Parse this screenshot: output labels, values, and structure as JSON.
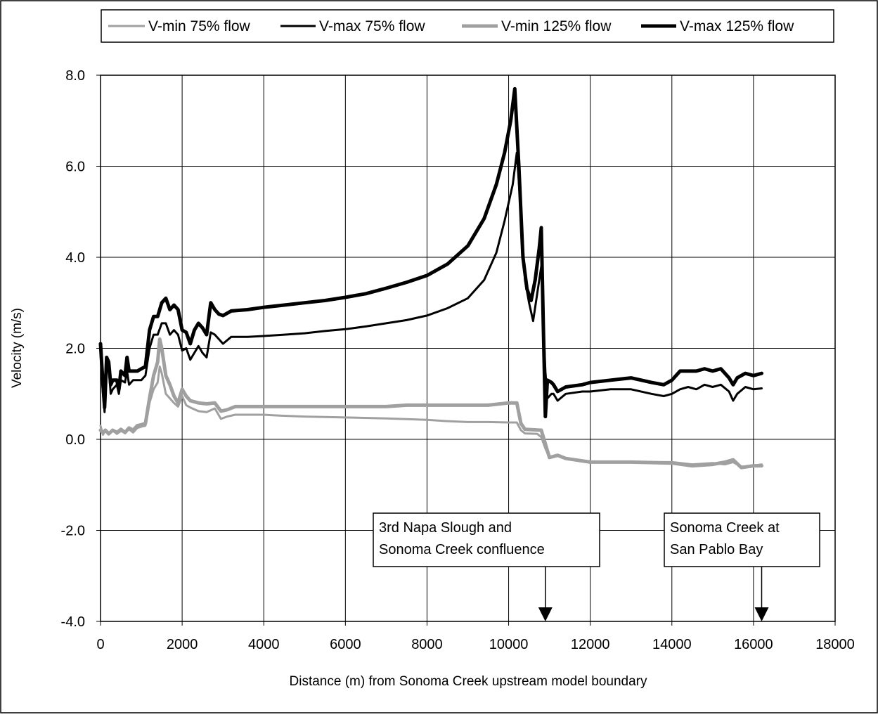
{
  "chart_data": {
    "type": "line",
    "title": "",
    "xlabel": "Distance (m) from Sonoma Creek upstream model boundary",
    "ylabel": "Velocity (m/s)",
    "xlim": [
      0,
      18000
    ],
    "ylim": [
      -4.0,
      8.0
    ],
    "x_ticks": [
      "0",
      "2000",
      "4000",
      "6000",
      "8000",
      "10000",
      "12000",
      "14000",
      "16000",
      "18000"
    ],
    "y_ticks": [
      "-4.0",
      "-2.0",
      "0.0",
      "2.0",
      "4.0",
      "6.0",
      "8.0"
    ],
    "grid": true,
    "legend_position": "top",
    "series": [
      {
        "name": "V-min 75% flow",
        "color": "#a0a0a0",
        "width": "thin",
        "points": [
          [
            0,
            0.3
          ],
          [
            60,
            0.1
          ],
          [
            120,
            0.2
          ],
          [
            200,
            0.15
          ],
          [
            300,
            0.2
          ],
          [
            400,
            0.12
          ],
          [
            500,
            0.18
          ],
          [
            600,
            0.15
          ],
          [
            700,
            0.22
          ],
          [
            800,
            0.15
          ],
          [
            900,
            0.25
          ],
          [
            1000,
            0.28
          ],
          [
            1100,
            0.3
          ],
          [
            1200,
            0.8
          ],
          [
            1300,
            1.1
          ],
          [
            1400,
            1.25
          ],
          [
            1450,
            1.6
          ],
          [
            1500,
            1.45
          ],
          [
            1600,
            1.0
          ],
          [
            1700,
            0.9
          ],
          [
            1800,
            0.8
          ],
          [
            1900,
            0.72
          ],
          [
            2000,
            0.95
          ],
          [
            2100,
            0.75
          ],
          [
            2200,
            0.7
          ],
          [
            2400,
            0.62
          ],
          [
            2600,
            0.6
          ],
          [
            2800,
            0.68
          ],
          [
            2950,
            0.45
          ],
          [
            3100,
            0.5
          ],
          [
            3300,
            0.54
          ],
          [
            3600,
            0.54
          ],
          [
            4000,
            0.54
          ],
          [
            4400,
            0.52
          ],
          [
            5000,
            0.5
          ],
          [
            6000,
            0.48
          ],
          [
            7000,
            0.46
          ],
          [
            8000,
            0.43
          ],
          [
            8500,
            0.4
          ],
          [
            9000,
            0.38
          ],
          [
            9500,
            0.38
          ],
          [
            10000,
            0.37
          ],
          [
            10200,
            0.37
          ],
          [
            10300,
            0.2
          ],
          [
            10400,
            0.13
          ],
          [
            10700,
            0.12
          ],
          [
            10800,
            0.05
          ],
          [
            10900,
            -0.2
          ],
          [
            11000,
            -0.4
          ],
          [
            11200,
            -0.35
          ],
          [
            11400,
            -0.42
          ],
          [
            12000,
            -0.5
          ],
          [
            13000,
            -0.5
          ],
          [
            14000,
            -0.5
          ],
          [
            14500,
            -0.55
          ],
          [
            15000,
            -0.52
          ],
          [
            15300,
            -0.55
          ],
          [
            15500,
            -0.5
          ],
          [
            15700,
            -0.6
          ],
          [
            16000,
            -0.58
          ],
          [
            16200,
            -0.55
          ]
        ]
      },
      {
        "name": "V-max 75% flow",
        "color": "#000000",
        "width": "thin",
        "points": [
          [
            0,
            1.9
          ],
          [
            60,
            1.0
          ],
          [
            100,
            0.6
          ],
          [
            150,
            1.7
          ],
          [
            200,
            1.6
          ],
          [
            250,
            1.0
          ],
          [
            300,
            1.1
          ],
          [
            400,
            1.2
          ],
          [
            450,
            1.0
          ],
          [
            500,
            1.3
          ],
          [
            600,
            1.25
          ],
          [
            650,
            1.5
          ],
          [
            700,
            1.2
          ],
          [
            800,
            1.3
          ],
          [
            900,
            1.3
          ],
          [
            1000,
            1.3
          ],
          [
            1100,
            1.4
          ],
          [
            1200,
            2.0
          ],
          [
            1300,
            2.3
          ],
          [
            1400,
            2.3
          ],
          [
            1500,
            2.55
          ],
          [
            1600,
            2.55
          ],
          [
            1700,
            2.3
          ],
          [
            1800,
            2.4
          ],
          [
            1900,
            2.3
          ],
          [
            2000,
            1.95
          ],
          [
            2100,
            2.0
          ],
          [
            2200,
            1.75
          ],
          [
            2300,
            1.9
          ],
          [
            2400,
            2.05
          ],
          [
            2500,
            1.9
          ],
          [
            2600,
            1.8
          ],
          [
            2700,
            2.35
          ],
          [
            2800,
            2.3
          ],
          [
            2900,
            2.2
          ],
          [
            3000,
            2.1
          ],
          [
            3200,
            2.25
          ],
          [
            3600,
            2.25
          ],
          [
            4000,
            2.27
          ],
          [
            4500,
            2.3
          ],
          [
            5000,
            2.33
          ],
          [
            5500,
            2.38
          ],
          [
            6000,
            2.42
          ],
          [
            6500,
            2.48
          ],
          [
            7000,
            2.55
          ],
          [
            7500,
            2.62
          ],
          [
            8000,
            2.72
          ],
          [
            8500,
            2.88
          ],
          [
            9000,
            3.1
          ],
          [
            9400,
            3.5
          ],
          [
            9700,
            4.1
          ],
          [
            9900,
            4.8
          ],
          [
            10100,
            5.6
          ],
          [
            10200,
            6.3
          ],
          [
            10300,
            5.0
          ],
          [
            10400,
            3.5
          ],
          [
            10500,
            3.0
          ],
          [
            10600,
            2.6
          ],
          [
            10700,
            3.2
          ],
          [
            10800,
            3.8
          ],
          [
            10900,
            1.5
          ],
          [
            10950,
            0.9
          ],
          [
            11050,
            1.0
          ],
          [
            11100,
            1.0
          ],
          [
            11200,
            0.85
          ],
          [
            11400,
            1.0
          ],
          [
            11800,
            1.05
          ],
          [
            12000,
            1.05
          ],
          [
            12500,
            1.1
          ],
          [
            13000,
            1.1
          ],
          [
            13500,
            1.0
          ],
          [
            13800,
            0.95
          ],
          [
            14000,
            1.0
          ],
          [
            14200,
            1.1
          ],
          [
            14400,
            1.15
          ],
          [
            14600,
            1.1
          ],
          [
            14800,
            1.2
          ],
          [
            15000,
            1.15
          ],
          [
            15200,
            1.2
          ],
          [
            15400,
            1.05
          ],
          [
            15500,
            0.85
          ],
          [
            15600,
            1.0
          ],
          [
            15800,
            1.15
          ],
          [
            16000,
            1.1
          ],
          [
            16200,
            1.12
          ]
        ]
      },
      {
        "name": "V-min 125% flow",
        "color": "#a0a0a0",
        "width": "thick",
        "points": [
          [
            0,
            0.2
          ],
          [
            60,
            0.15
          ],
          [
            120,
            0.2
          ],
          [
            200,
            0.12
          ],
          [
            300,
            0.2
          ],
          [
            400,
            0.15
          ],
          [
            500,
            0.22
          ],
          [
            600,
            0.15
          ],
          [
            700,
            0.25
          ],
          [
            800,
            0.2
          ],
          [
            900,
            0.3
          ],
          [
            1000,
            0.32
          ],
          [
            1100,
            0.35
          ],
          [
            1200,
            0.9
          ],
          [
            1300,
            1.4
          ],
          [
            1400,
            1.7
          ],
          [
            1450,
            2.2
          ],
          [
            1500,
            2.0
          ],
          [
            1600,
            1.4
          ],
          [
            1700,
            1.2
          ],
          [
            1800,
            0.95
          ],
          [
            1900,
            0.8
          ],
          [
            2000,
            1.1
          ],
          [
            2100,
            0.95
          ],
          [
            2200,
            0.85
          ],
          [
            2400,
            0.8
          ],
          [
            2600,
            0.78
          ],
          [
            2800,
            0.8
          ],
          [
            2950,
            0.62
          ],
          [
            3100,
            0.65
          ],
          [
            3300,
            0.72
          ],
          [
            5000,
            0.72
          ],
          [
            7000,
            0.72
          ],
          [
            7500,
            0.75
          ],
          [
            9500,
            0.75
          ],
          [
            10000,
            0.8
          ],
          [
            10200,
            0.8
          ],
          [
            10300,
            0.35
          ],
          [
            10400,
            0.22
          ],
          [
            10800,
            0.2
          ],
          [
            10900,
            -0.1
          ],
          [
            11000,
            -0.4
          ],
          [
            11200,
            -0.35
          ],
          [
            11400,
            -0.42
          ],
          [
            12000,
            -0.5
          ],
          [
            13000,
            -0.5
          ],
          [
            14000,
            -0.52
          ],
          [
            14500,
            -0.58
          ],
          [
            15000,
            -0.55
          ],
          [
            15300,
            -0.5
          ],
          [
            15500,
            -0.45
          ],
          [
            15700,
            -0.62
          ],
          [
            16000,
            -0.58
          ],
          [
            16200,
            -0.58
          ]
        ]
      },
      {
        "name": "V-max 125% flow",
        "color": "#000000",
        "width": "thick",
        "points": [
          [
            0,
            2.1
          ],
          [
            60,
            1.2
          ],
          [
            100,
            0.7
          ],
          [
            150,
            1.8
          ],
          [
            200,
            1.7
          ],
          [
            250,
            1.2
          ],
          [
            300,
            1.3
          ],
          [
            400,
            1.3
          ],
          [
            450,
            1.1
          ],
          [
            500,
            1.5
          ],
          [
            600,
            1.4
          ],
          [
            650,
            1.8
          ],
          [
            700,
            1.5
          ],
          [
            800,
            1.5
          ],
          [
            900,
            1.5
          ],
          [
            1000,
            1.55
          ],
          [
            1100,
            1.6
          ],
          [
            1200,
            2.4
          ],
          [
            1300,
            2.7
          ],
          [
            1400,
            2.7
          ],
          [
            1500,
            3.0
          ],
          [
            1600,
            3.1
          ],
          [
            1700,
            2.85
          ],
          [
            1800,
            2.95
          ],
          [
            1900,
            2.85
          ],
          [
            2000,
            2.4
          ],
          [
            2100,
            2.35
          ],
          [
            2200,
            2.1
          ],
          [
            2300,
            2.4
          ],
          [
            2400,
            2.55
          ],
          [
            2500,
            2.45
          ],
          [
            2600,
            2.3
          ],
          [
            2700,
            3.0
          ],
          [
            2800,
            2.85
          ],
          [
            2900,
            2.75
          ],
          [
            3000,
            2.72
          ],
          [
            3200,
            2.82
          ],
          [
            3600,
            2.85
          ],
          [
            4000,
            2.9
          ],
          [
            4500,
            2.95
          ],
          [
            5000,
            3.0
          ],
          [
            5500,
            3.05
          ],
          [
            6000,
            3.12
          ],
          [
            6500,
            3.2
          ],
          [
            7000,
            3.32
          ],
          [
            7500,
            3.45
          ],
          [
            8000,
            3.6
          ],
          [
            8500,
            3.85
          ],
          [
            9000,
            4.25
          ],
          [
            9400,
            4.85
          ],
          [
            9700,
            5.6
          ],
          [
            9900,
            6.3
          ],
          [
            10050,
            7.0
          ],
          [
            10150,
            7.7
          ],
          [
            10250,
            6.0
          ],
          [
            10350,
            4.0
          ],
          [
            10450,
            3.3
          ],
          [
            10550,
            3.05
          ],
          [
            10650,
            3.5
          ],
          [
            10750,
            4.2
          ],
          [
            10800,
            4.65
          ],
          [
            10850,
            2.5
          ],
          [
            10900,
            0.5
          ],
          [
            10950,
            1.3
          ],
          [
            11050,
            1.25
          ],
          [
            11100,
            1.2
          ],
          [
            11200,
            1.05
          ],
          [
            11400,
            1.15
          ],
          [
            11800,
            1.2
          ],
          [
            12000,
            1.25
          ],
          [
            12500,
            1.3
          ],
          [
            13000,
            1.35
          ],
          [
            13500,
            1.25
          ],
          [
            13800,
            1.2
          ],
          [
            14000,
            1.3
          ],
          [
            14200,
            1.5
          ],
          [
            14400,
            1.5
          ],
          [
            14600,
            1.5
          ],
          [
            14800,
            1.55
          ],
          [
            15000,
            1.5
          ],
          [
            15200,
            1.55
          ],
          [
            15400,
            1.35
          ],
          [
            15500,
            1.2
          ],
          [
            15600,
            1.35
          ],
          [
            15800,
            1.45
          ],
          [
            16000,
            1.4
          ],
          [
            16200,
            1.45
          ]
        ]
      }
    ],
    "annotations": [
      {
        "lines": [
          "3rd Napa Slough and",
          "Sonoma Creek confluence"
        ],
        "arrow_x": 10900
      },
      {
        "lines": [
          "Sonoma Creek at",
          "San Pablo Bay"
        ],
        "arrow_x": 16200
      }
    ]
  }
}
